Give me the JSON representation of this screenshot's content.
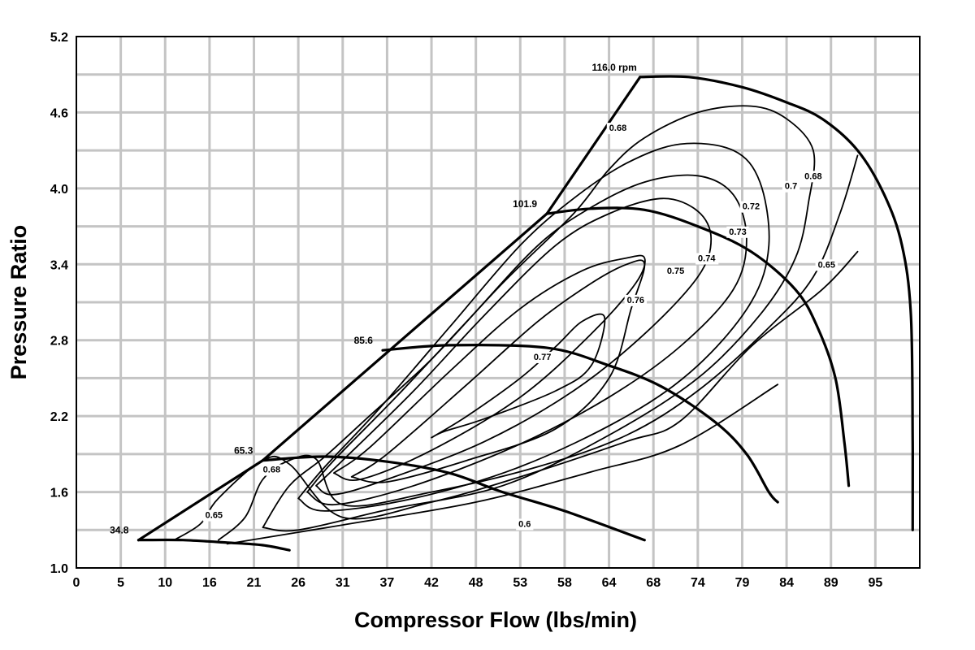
{
  "chart_data": {
    "type": "line",
    "title": "",
    "xlabel": "Compressor Flow (lbs/min)",
    "ylabel": "Pressure Ratio",
    "x_ticks": [
      "0",
      "5",
      "10",
      "16",
      "21",
      "26",
      "31",
      "37",
      "42",
      "48",
      "53",
      "58",
      "64",
      "68",
      "74",
      "79",
      "84",
      "89",
      "95"
    ],
    "y_ticks": [
      "1.0",
      "1.6",
      "2.2",
      "2.8",
      "3.4",
      "4.0",
      "4.6",
      "5.2"
    ],
    "xlim": [
      0,
      95
    ],
    "ylim": [
      1.0,
      5.2
    ],
    "grid": true,
    "surge_line": [
      [
        7,
        1.22
      ],
      [
        21,
        1.85
      ],
      [
        53,
        3.8
      ],
      [
        63.5,
        4.88
      ]
    ],
    "speed_lines": [
      {
        "name": "34.8",
        "points": [
          [
            7,
            1.22
          ],
          [
            12,
            1.22
          ],
          [
            17,
            1.2
          ],
          [
            21,
            1.18
          ],
          [
            24,
            1.14
          ]
        ]
      },
      {
        "name": "65.3",
        "points": [
          [
            21,
            1.85
          ],
          [
            28,
            1.88
          ],
          [
            35,
            1.84
          ],
          [
            42,
            1.75
          ],
          [
            48,
            1.6
          ],
          [
            55,
            1.45
          ],
          [
            64,
            1.22
          ]
        ]
      },
      {
        "name": "85.6",
        "points": [
          [
            34.5,
            2.72
          ],
          [
            42,
            2.76
          ],
          [
            53,
            2.74
          ],
          [
            60,
            2.6
          ],
          [
            66,
            2.43
          ],
          [
            72,
            2.15
          ],
          [
            75.5,
            1.9
          ],
          [
            78,
            1.6
          ],
          [
            79,
            1.52
          ]
        ]
      },
      {
        "name": "101.9",
        "points": [
          [
            53,
            3.8
          ],
          [
            58,
            3.84
          ],
          [
            64,
            3.83
          ],
          [
            70,
            3.7
          ],
          [
            76,
            3.5
          ],
          [
            81,
            3.2
          ],
          [
            83.5,
            2.9
          ],
          [
            85.5,
            2.5
          ],
          [
            86.5,
            2.0
          ],
          [
            87,
            1.65
          ]
        ]
      },
      {
        "name": "116.0",
        "points": [
          [
            63.5,
            4.88
          ],
          [
            69,
            4.88
          ],
          [
            75,
            4.8
          ],
          [
            80,
            4.68
          ],
          [
            84,
            4.55
          ],
          [
            88,
            4.3
          ],
          [
            91,
            3.95
          ],
          [
            93,
            3.55
          ],
          [
            94,
            3.0
          ],
          [
            94.2,
            2.0
          ],
          [
            94.2,
            1.3
          ]
        ]
      }
    ],
    "efficiency_islands": [
      {
        "label": "0.6",
        "points": [
          [
            17,
            1.19
          ],
          [
            30,
            1.34
          ],
          [
            45,
            1.52
          ],
          [
            58,
            1.76
          ],
          [
            68,
            1.97
          ],
          [
            79,
            2.45
          ]
        ]
      },
      {
        "label": "0.65",
        "points": [
          [
            11,
            1.22
          ],
          [
            14,
            1.35
          ],
          [
            16,
            1.55
          ],
          [
            21,
            1.85
          ],
          [
            24,
            1.82
          ],
          [
            30,
            1.4
          ],
          [
            40,
            1.52
          ],
          [
            50,
            1.72
          ],
          [
            62,
            2.0
          ],
          [
            68,
            2.16
          ],
          [
            76,
            2.75
          ],
          [
            84,
            3.2
          ],
          [
            88,
            3.5
          ]
        ]
      },
      {
        "label": "0.68",
        "points": [
          [
            16,
            1.22
          ],
          [
            19,
            1.4
          ],
          [
            21,
            1.7
          ],
          [
            24,
            1.85
          ],
          [
            27,
            1.86
          ],
          [
            30,
            1.5
          ],
          [
            40,
            1.6
          ],
          [
            52,
            1.8
          ],
          [
            62,
            2.05
          ],
          [
            70,
            2.4
          ],
          [
            78,
            2.9
          ],
          [
            83,
            3.3
          ],
          [
            86,
            3.8
          ],
          [
            88,
            4.26
          ]
        ]
      },
      {
        "label": "0.7",
        "points": [
          [
            21,
            1.32
          ],
          [
            24,
            1.65
          ],
          [
            28,
            1.88
          ],
          [
            33,
            2.2
          ],
          [
            40,
            2.65
          ],
          [
            48,
            3.25
          ],
          [
            56,
            3.8
          ],
          [
            60,
            4.15
          ],
          [
            64,
            4.4
          ],
          [
            70,
            4.6
          ],
          [
            76,
            4.65
          ],
          [
            80,
            4.55
          ],
          [
            83,
            4.3
          ],
          [
            82.5,
            3.9
          ],
          [
            81,
            3.45
          ],
          [
            77,
            3.0
          ],
          [
            70,
            2.5
          ],
          [
            60,
            2.05
          ],
          [
            48,
            1.65
          ],
          [
            35,
            1.46
          ],
          [
            25,
            1.3
          ],
          [
            21,
            1.32
          ]
        ]
      },
      {
        "label": "0.72",
        "points": [
          [
            25,
            1.55
          ],
          [
            28,
            1.8
          ],
          [
            34,
            2.25
          ],
          [
            42,
            2.9
          ],
          [
            50,
            3.55
          ],
          [
            56,
            3.92
          ],
          [
            62,
            4.2
          ],
          [
            68,
            4.35
          ],
          [
            74,
            4.3
          ],
          [
            77,
            4.05
          ],
          [
            78,
            3.55
          ],
          [
            76,
            3.1
          ],
          [
            70,
            2.6
          ],
          [
            62,
            2.2
          ],
          [
            50,
            1.8
          ],
          [
            38,
            1.55
          ],
          [
            28,
            1.45
          ],
          [
            25,
            1.55
          ]
        ]
      },
      {
        "label": "0.73",
        "points": [
          [
            26,
            1.6
          ],
          [
            29,
            1.85
          ],
          [
            36,
            2.35
          ],
          [
            44,
            2.95
          ],
          [
            52,
            3.55
          ],
          [
            58,
            3.85
          ],
          [
            64,
            4.05
          ],
          [
            70,
            4.1
          ],
          [
            74,
            3.95
          ],
          [
            75.5,
            3.6
          ],
          [
            74,
            3.2
          ],
          [
            68,
            2.75
          ],
          [
            60,
            2.35
          ],
          [
            50,
            1.98
          ],
          [
            38,
            1.65
          ],
          [
            29,
            1.5
          ],
          [
            26,
            1.6
          ]
        ]
      },
      {
        "label": "0.74",
        "points": [
          [
            27,
            1.65
          ],
          [
            30,
            1.85
          ],
          [
            38,
            2.4
          ],
          [
            46,
            3.0
          ],
          [
            54,
            3.55
          ],
          [
            60,
            3.8
          ],
          [
            66,
            3.92
          ],
          [
            70,
            3.82
          ],
          [
            71.5,
            3.6
          ],
          [
            70,
            3.3
          ],
          [
            64,
            2.85
          ],
          [
            56,
            2.4
          ],
          [
            46,
            2.0
          ],
          [
            35,
            1.7
          ],
          [
            29,
            1.58
          ],
          [
            27,
            1.65
          ]
        ]
      },
      {
        "label": "0.75",
        "points": [
          [
            29,
            1.75
          ],
          [
            33,
            1.95
          ],
          [
            42,
            2.55
          ],
          [
            50,
            3.05
          ],
          [
            57,
            3.35
          ],
          [
            62,
            3.45
          ],
          [
            64,
            3.45
          ],
          [
            63,
            3.25
          ],
          [
            58,
            2.85
          ],
          [
            50,
            2.35
          ],
          [
            40,
            1.93
          ],
          [
            32,
            1.7
          ],
          [
            29,
            1.75
          ]
        ]
      },
      {
        "label": "0.76",
        "points": [
          [
            31,
            1.72
          ],
          [
            35,
            1.9
          ],
          [
            44,
            2.45
          ],
          [
            52,
            2.95
          ],
          [
            58,
            3.25
          ],
          [
            62,
            3.4
          ],
          [
            64,
            3.4
          ],
          [
            62.5,
            3.05
          ],
          [
            60,
            2.5
          ],
          [
            54,
            2.1
          ],
          [
            44,
            1.85
          ],
          [
            35,
            1.68
          ],
          [
            31,
            1.72
          ]
        ]
      },
      {
        "label": "0.77",
        "points": [
          [
            40,
            2.03
          ],
          [
            44,
            2.2
          ],
          [
            50,
            2.5
          ],
          [
            54,
            2.75
          ],
          [
            57,
            2.95
          ],
          [
            59.5,
            2.98
          ],
          [
            58,
            2.6
          ],
          [
            54,
            2.4
          ],
          [
            46,
            2.18
          ],
          [
            41.5,
            2.08
          ],
          [
            40,
            2.03
          ]
        ]
      }
    ]
  }
}
